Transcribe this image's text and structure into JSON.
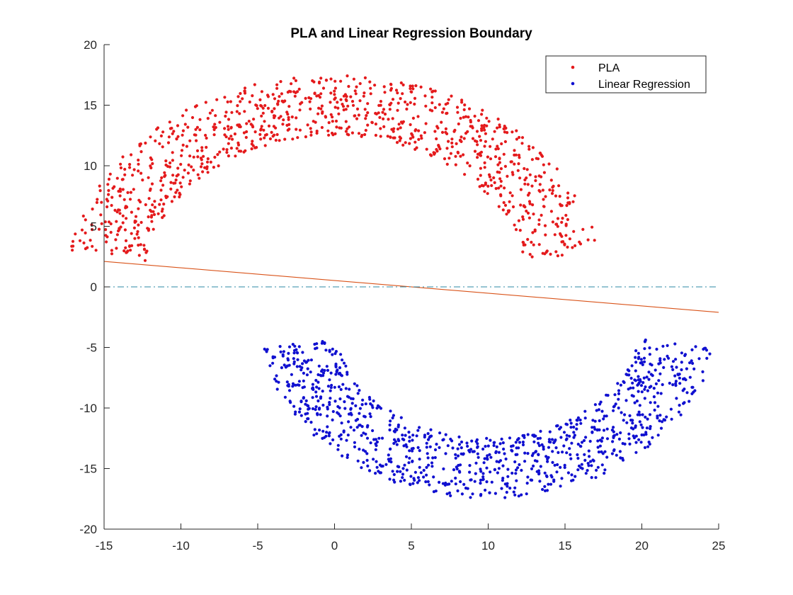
{
  "chart_data": {
    "type": "scatter",
    "title": "PLA and Linear Regression Boundary",
    "xlabel": "",
    "ylabel": "",
    "xlim": [
      -15,
      25
    ],
    "ylim": [
      -20,
      20
    ],
    "xticks": [
      -15,
      -10,
      -5,
      0,
      5,
      10,
      15,
      20,
      25
    ],
    "yticks": [
      -20,
      -15,
      -10,
      -5,
      0,
      5,
      10,
      15,
      20
    ],
    "xtick_labels": [
      "-15",
      "-10",
      "-5",
      "0",
      "5",
      "10",
      "15",
      "20",
      "25"
    ],
    "ytick_labels": [
      "-20",
      "-15",
      "-10",
      "-5",
      "0",
      "5",
      "10",
      "15",
      "20"
    ],
    "grid": false,
    "legend_position": "top-right",
    "series": [
      {
        "name": "PLA",
        "kind": "scatter",
        "color": "#e41a1c",
        "shape": "upper half ring",
        "center": [
          0,
          0
        ],
        "inner_radius": 12.5,
        "outer_radius": 17.5,
        "angle_range_deg": [
          10,
          170
        ],
        "count": 1000
      },
      {
        "name": "Linear Regression",
        "kind": "scatter",
        "color": "#1010d0",
        "shape": "lower half ring",
        "center": [
          10,
          -2.5
        ],
        "inner_radius": 10,
        "outer_radius": 15,
        "angle_range_deg": [
          190,
          350
        ],
        "count": 1000
      }
    ],
    "lines": [
      {
        "kind": "line",
        "style": "solid",
        "color": "#d95319",
        "points": [
          [
            -15,
            2.1
          ],
          [
            25,
            -2.1
          ]
        ]
      },
      {
        "kind": "line",
        "style": "dash-dot",
        "color": "#2c8aa6",
        "points": [
          [
            -15,
            0
          ],
          [
            25,
            0
          ]
        ]
      }
    ],
    "colors": {
      "axis": "#262626",
      "pla": "#e41a1c",
      "linear_regression": "#1010d0",
      "pla_boundary": "#d95319",
      "lr_boundary": "#2c8aa6"
    }
  }
}
